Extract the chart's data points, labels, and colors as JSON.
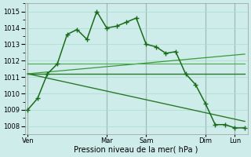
{
  "bg_color": "#ceecea",
  "grid_color": "#aaddcc",
  "ylim": [
    1007.5,
    1015.5
  ],
  "yticks": [
    1008,
    1009,
    1010,
    1011,
    1012,
    1013,
    1014,
    1015
  ],
  "xlim": [
    -0.3,
    22.3
  ],
  "xlabel": "Pression niveau de la mer( hPa )",
  "main_line": {
    "x": [
      0,
      1,
      2,
      3,
      4,
      5,
      6,
      7,
      8,
      9,
      10,
      11,
      12,
      13,
      14,
      15,
      16,
      17,
      18,
      19,
      20,
      21,
      22
    ],
    "y": [
      1009.0,
      1009.7,
      1011.2,
      1011.8,
      1013.6,
      1013.9,
      1013.3,
      1015.0,
      1014.0,
      1014.1,
      1014.35,
      1014.6,
      1013.0,
      1012.85,
      1012.45,
      1012.55,
      1011.2,
      1010.55,
      1009.4,
      1008.1,
      1008.1,
      1007.9,
      1007.9
    ],
    "color": "#1a6b1a",
    "lw": 1.1,
    "marker": "+",
    "ms": 4,
    "mew": 1.0
  },
  "straight_lines": [
    {
      "x": [
        0,
        22
      ],
      "y": [
        1011.2,
        1011.2
      ],
      "color": "#2a7a2a",
      "lw": 1.0
    },
    {
      "x": [
        0,
        22
      ],
      "y": [
        1011.2,
        1012.4
      ],
      "color": "#3a9a3a",
      "lw": 0.9
    },
    {
      "x": [
        0,
        22
      ],
      "y": [
        1011.2,
        1008.3
      ],
      "color": "#2a7a2a",
      "lw": 1.0
    },
    {
      "x": [
        0,
        22
      ],
      "y": [
        1011.8,
        1011.8
      ],
      "color": "#4aaa4a",
      "lw": 0.8
    }
  ],
  "vlines": [
    {
      "x": 0,
      "color": "#777777",
      "lw": 0.8
    },
    {
      "x": 8,
      "color": "#777777",
      "lw": 0.8
    },
    {
      "x": 12,
      "color": "#777777",
      "lw": 0.8
    },
    {
      "x": 18,
      "color": "#777777",
      "lw": 0.8
    },
    {
      "x": 21,
      "color": "#777777",
      "lw": 0.8
    }
  ],
  "xtick_positions": [
    0,
    8,
    12,
    18,
    21
  ],
  "xtick_labels": [
    "Ven",
    "Mar",
    "Sam",
    "Dim",
    "Lun"
  ],
  "ytick_fontsize": 6,
  "xtick_fontsize": 6,
  "xlabel_fontsize": 7
}
